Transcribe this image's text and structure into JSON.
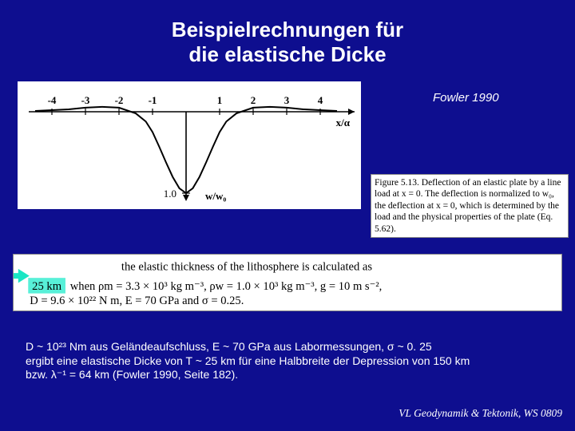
{
  "title_line1": "Beispielrechnungen für",
  "title_line2": "die elastische Dicke",
  "citation": "Fowler 1990",
  "plot": {
    "bg": "#ffffff",
    "axis_color": "#000000",
    "curve_color": "#000000",
    "xlabel": "x/α",
    "ylabel_at_bottom": "w/w₀",
    "x_ticks": [
      "-4",
      "-3",
      "-2",
      "-1",
      "1",
      "2",
      "3",
      "4"
    ],
    "y_tick_bottom": "1.0",
    "xlim": [
      -4.5,
      4.5
    ],
    "ylim_plot": [
      -0.15,
      1.1
    ],
    "curve": [
      [
        -4.5,
        -0.01
      ],
      [
        -4.0,
        -0.02
      ],
      [
        -3.5,
        -0.03
      ],
      [
        -3.0,
        -0.05
      ],
      [
        -2.5,
        -0.06
      ],
      [
        -2.0,
        -0.05
      ],
      [
        -1.5,
        0.02
      ],
      [
        -1.2,
        0.12
      ],
      [
        -1.0,
        0.25
      ],
      [
        -0.8,
        0.43
      ],
      [
        -0.6,
        0.62
      ],
      [
        -0.4,
        0.8
      ],
      [
        -0.2,
        0.94
      ],
      [
        0.0,
        1.0
      ],
      [
        0.2,
        0.94
      ],
      [
        0.4,
        0.8
      ],
      [
        0.6,
        0.62
      ],
      [
        0.8,
        0.43
      ],
      [
        1.0,
        0.25
      ],
      [
        1.2,
        0.12
      ],
      [
        1.5,
        0.02
      ],
      [
        2.0,
        -0.05
      ],
      [
        2.5,
        -0.06
      ],
      [
        3.0,
        -0.05
      ],
      [
        3.5,
        -0.03
      ],
      [
        4.0,
        -0.02
      ],
      [
        4.5,
        -0.01
      ]
    ]
  },
  "caption": "Figure 5.13. Deflection of an elastic plate by a line load at x = 0. The deflection is normalized to w₀, the deflection at x = 0, which is determined by the load and the physical properties of the plate (Eq. 5.62).",
  "excerpt": {
    "highlight_text": "25 km",
    "highlight_bg": "#58f0d8",
    "line1_tail": "the elastic thickness of the lithosphere is calculated as",
    "line2": "when ρm = 3.3 × 10³ kg m⁻³, ρw = 1.0 × 10³ kg m⁻³, g = 10 m s⁻²,",
    "line3": "D = 9.6 × 10²² N m, E = 70 GPa and σ = 0.25.",
    "font": "Times New Roman",
    "fontsize": 15
  },
  "notes": {
    "line1": "D ~ 10²³ Nm aus Geländeaufschluss, E ~ 70 GPa aus Labormessungen, σ ~ 0. 25",
    "line2": "ergibt eine elastische Dicke von T ~ 25 km für eine Halbbreite der Depression von 150 km",
    "line3": "bzw. λ⁻¹ = 64 km (Fowler 1990, Seite 182)."
  },
  "footer": "VL Geodynamik & Tektonik, WS 0809",
  "colors": {
    "page_bg": "#0e0e8f",
    "text_on_bg": "#ffffff",
    "panel_bg": "#ffffff",
    "panel_border": "#888888",
    "arrow": "#19e6c4"
  }
}
